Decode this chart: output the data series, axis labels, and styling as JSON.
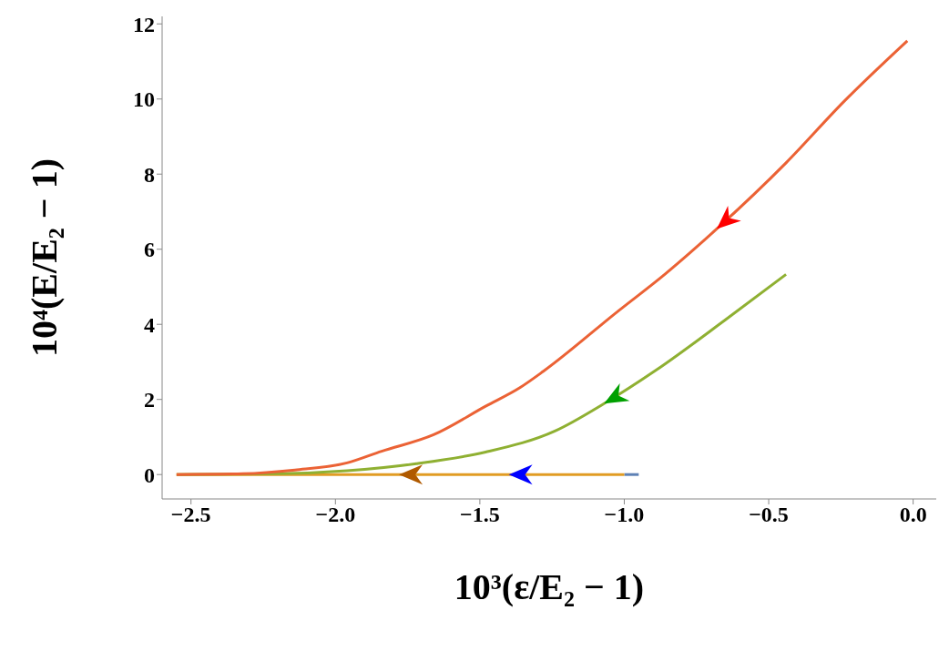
{
  "chart_data": {
    "type": "line",
    "xlabel": "10³(ε/E₂ − 1)",
    "ylabel": "10⁴(E/E₂ − 1)",
    "xlim": [
      -2.6,
      0.08
    ],
    "ylim": [
      -0.65,
      12.2
    ],
    "xticks": [
      {
        "value": -2.5,
        "label": "−2.5"
      },
      {
        "value": -2,
        "label": "−2.0"
      },
      {
        "value": -1.5,
        "label": "−1.5"
      },
      {
        "value": -1,
        "label": "−1.0"
      },
      {
        "value": -0.5,
        "label": "−0.5"
      },
      {
        "value": 0,
        "label": "0.0"
      }
    ],
    "yticks": [
      0,
      2,
      4,
      6,
      8,
      10,
      12
    ],
    "grid": false,
    "legend": false,
    "marker": "none",
    "line_style": "solid",
    "series": [
      {
        "color": "#5e81b5",
        "x": [
          -1.0,
          -0.95
        ],
        "values": [
          0,
          0
        ]
      },
      {
        "color": "#e19c24",
        "x": [
          -2.55,
          -1.78,
          -1.4,
          -1.0
        ],
        "values": [
          0,
          0,
          0,
          0
        ]
      },
      {
        "color": "#8fb032",
        "x": [
          -2.55,
          -2.2,
          -1.96,
          -1.72,
          -1.48,
          -1.24,
          -1.07,
          -0.89,
          -0.65,
          -0.44
        ],
        "values": [
          0,
          0.02,
          0.1,
          0.29,
          0.6,
          1.16,
          1.89,
          2.78,
          4.12,
          5.33
        ]
      },
      {
        "color": "#eb6235",
        "x": [
          -2.55,
          -2.32,
          -2.14,
          -1.96,
          -1.84,
          -1.66,
          -1.48,
          -1.36,
          -1.28,
          -1.02,
          -0.86,
          -0.68,
          -0.44,
          -0.24,
          -0.02
        ],
        "values": [
          0,
          0.02,
          0.12,
          0.31,
          0.62,
          1.06,
          1.82,
          2.32,
          2.75,
          4.36,
          5.33,
          6.54,
          8.3,
          9.93,
          11.55
        ]
      }
    ]
  }
}
